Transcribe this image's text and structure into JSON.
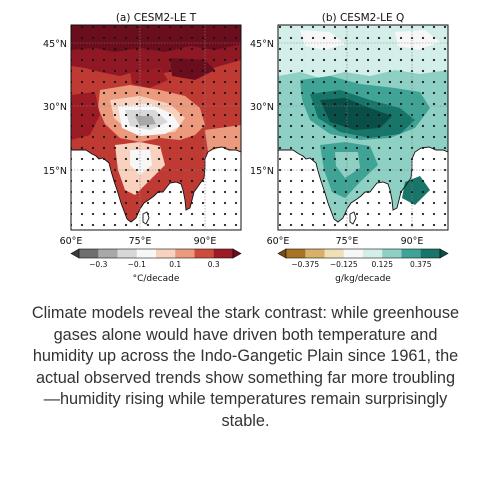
{
  "panels": [
    {
      "title": "(a) CESM2-LE T",
      "lat_ticks": [
        "45°N",
        "30°N",
        "15°N"
      ],
      "lon_ticks": [
        "60°E",
        "75°E",
        "90°E"
      ],
      "colorbar": {
        "label": "°C/decade",
        "tick_labels": [
          "−0.3",
          "−0.1",
          "0.1",
          "0.3"
        ],
        "colors": [
          "#3b3b3b",
          "#6e6e6e",
          "#a8a8a8",
          "#d8d8d8",
          "#f7f7f7",
          "#f9d2bf",
          "#eb9a7e",
          "#cc4d3d",
          "#9c1c26",
          "#6a0d1d"
        ]
      }
    },
    {
      "title": "(b) CESM2-LE Q",
      "lat_ticks": [
        "45°N",
        "30°N",
        "15°N"
      ],
      "lon_ticks": [
        "60°E",
        "75°E",
        "90°E"
      ],
      "colorbar": {
        "label": "g/kg/decade",
        "tick_labels": [
          "−0.375",
          "−0.125",
          "0.125",
          "0.375"
        ],
        "colors": [
          "#7a4a0c",
          "#a87424",
          "#d7b06a",
          "#efe0b8",
          "#f7f7f7",
          "#d4eee9",
          "#8fd0c4",
          "#3fa496",
          "#17756a",
          "#0a4f47"
        ]
      }
    }
  ],
  "caption": "Climate models reveal the stark contrast: while greenhouse gases alone would have driven both temperature and humidity up across the Indo-Gangetic Plain since 1961, the actual observed trends show something far more troubling—humidity rising while temperatures remain surprisingly stable."
}
